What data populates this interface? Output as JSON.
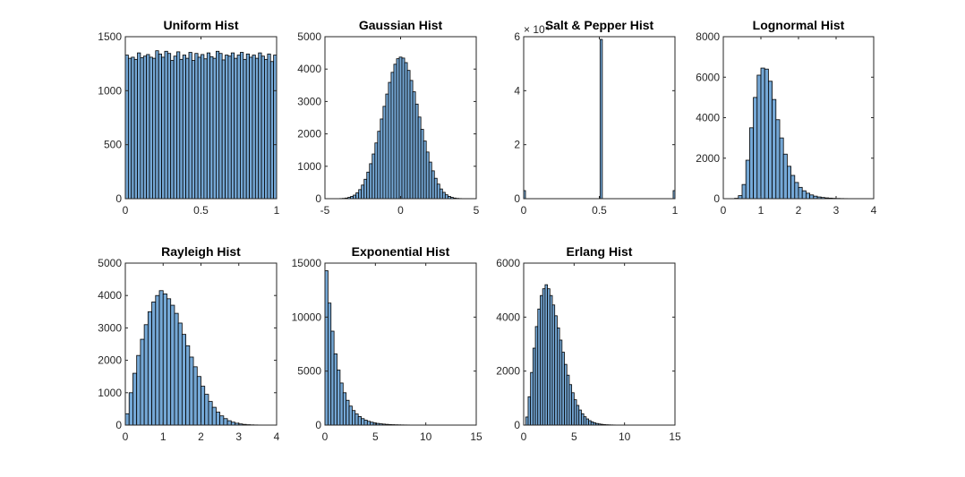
{
  "figure": {
    "background": "#ffffff",
    "bar_color": "#75A8D6",
    "bar_edge": "#000000"
  },
  "chart_data": [
    {
      "type": "bar",
      "title": "Uniform Hist",
      "xlim": [
        0,
        1
      ],
      "ylim": [
        0,
        1500
      ],
      "xticks": [
        "0",
        "0.5",
        "1"
      ],
      "xtick_values": [
        0,
        0.5,
        1
      ],
      "yticks": [
        "0",
        "500",
        "1000",
        "1500"
      ],
      "ytick_values": [
        0,
        500,
        1000,
        1500
      ],
      "bin_range": [
        0,
        1
      ],
      "values": [
        1330,
        1300,
        1310,
        1290,
        1350,
        1305,
        1320,
        1335,
        1310,
        1300,
        1370,
        1340,
        1310,
        1365,
        1345,
        1280,
        1320,
        1360,
        1290,
        1330,
        1300,
        1355,
        1280,
        1345,
        1310,
        1335,
        1295,
        1350,
        1315,
        1300,
        1365,
        1345,
        1285,
        1330,
        1320,
        1350,
        1300,
        1330,
        1355,
        1290,
        1340,
        1310,
        1330,
        1300,
        1350,
        1320,
        1290,
        1340,
        1270,
        1330
      ]
    },
    {
      "type": "bar",
      "title": "Gaussian Hist",
      "xlim": [
        -5,
        5
      ],
      "ylim": [
        0,
        5000
      ],
      "xticks": [
        "-5",
        "0",
        "5"
      ],
      "xtick_values": [
        -5,
        0,
        5
      ],
      "yticks": [
        "0",
        "1000",
        "2000",
        "3000",
        "4000",
        "5000"
      ],
      "ytick_values": [
        0,
        1000,
        2000,
        3000,
        4000,
        5000
      ],
      "bin_range": [
        -4.2,
        4.2
      ],
      "values": [
        2,
        5,
        10,
        20,
        40,
        70,
        110,
        180,
        280,
        420,
        600,
        820,
        1080,
        1380,
        1720,
        2080,
        2460,
        2850,
        3230,
        3590,
        3900,
        4150,
        4320,
        4370,
        4340,
        4200,
        3960,
        3650,
        3300,
        2920,
        2520,
        2140,
        1780,
        1440,
        1130,
        860,
        630,
        450,
        300,
        195,
        120,
        72,
        40,
        20,
        10,
        5,
        2
      ]
    },
    {
      "type": "bar",
      "title": "Salt & Pepper Hist",
      "xlim": [
        0,
        1
      ],
      "ylim": [
        0,
        6
      ],
      "y_exponent_label": "× 10⁴",
      "xticks": [
        "0",
        "0.5",
        "1"
      ],
      "xtick_values": [
        0,
        0.5,
        1
      ],
      "yticks": [
        "0",
        "2",
        "4",
        "6"
      ],
      "ytick_values": [
        0,
        2,
        4,
        6
      ],
      "bars": [
        {
          "x0": 0.0,
          "x1": 0.012,
          "value": 0.3
        },
        {
          "x0": 0.505,
          "x1": 0.52,
          "value": 5.9
        },
        {
          "x0": 0.988,
          "x1": 1.0,
          "value": 0.3
        }
      ]
    },
    {
      "type": "bar",
      "title": "Lognormal Hist",
      "xlim": [
        0,
        4
      ],
      "ylim": [
        0,
        8000
      ],
      "xticks": [
        "0",
        "1",
        "2",
        "3",
        "4"
      ],
      "xtick_values": [
        0,
        1,
        2,
        3,
        4
      ],
      "yticks": [
        "0",
        "2000",
        "4000",
        "6000",
        "8000"
      ],
      "ytick_values": [
        0,
        2000,
        4000,
        6000,
        8000
      ],
      "bin_range": [
        0.3,
        3.6
      ],
      "values": [
        20,
        150,
        700,
        1900,
        3500,
        5000,
        6100,
        6450,
        6400,
        5800,
        4900,
        3900,
        3000,
        2200,
        1600,
        1150,
        800,
        560,
        390,
        270,
        185,
        125,
        85,
        58,
        40,
        28,
        19,
        13,
        9,
        6,
        4,
        3,
        2
      ]
    },
    {
      "type": "bar",
      "title": "Rayleigh Hist",
      "xlim": [
        0,
        4
      ],
      "ylim": [
        0,
        5000
      ],
      "xticks": [
        "0",
        "1",
        "2",
        "3",
        "4"
      ],
      "xtick_values": [
        0,
        1,
        2,
        3,
        4
      ],
      "yticks": [
        "0",
        "1000",
        "2000",
        "3000",
        "4000",
        "5000"
      ],
      "ytick_values": [
        0,
        1000,
        2000,
        3000,
        4000,
        5000
      ],
      "bin_range": [
        0,
        3.8
      ],
      "values": [
        350,
        1000,
        1600,
        2150,
        2650,
        3100,
        3500,
        3800,
        4000,
        4150,
        4050,
        3900,
        3700,
        3450,
        3150,
        2800,
        2450,
        2100,
        1800,
        1500,
        1200,
        950,
        730,
        550,
        400,
        285,
        200,
        135,
        90,
        58,
        36,
        22,
        13,
        8,
        5,
        3,
        2,
        1
      ]
    },
    {
      "type": "bar",
      "title": "Exponential Hist",
      "xlim": [
        0,
        15
      ],
      "ylim": [
        0,
        15000
      ],
      "xticks": [
        "0",
        "5",
        "10",
        "15"
      ],
      "xtick_values": [
        0,
        5,
        10,
        15
      ],
      "yticks": [
        "0",
        "5000",
        "10000",
        "15000"
      ],
      "ytick_values": [
        0,
        5000,
        10000,
        15000
      ],
      "bin_range": [
        0,
        10.2
      ],
      "values": [
        14300,
        11300,
        8700,
        6600,
        5100,
        3900,
        3000,
        2300,
        1760,
        1350,
        1030,
        790,
        600,
        460,
        350,
        270,
        205,
        157,
        120,
        92,
        70,
        54,
        41,
        31,
        24,
        18,
        14,
        11,
        8,
        6,
        5,
        4,
        3,
        2
      ]
    },
    {
      "type": "bar",
      "title": "Erlang Hist",
      "xlim": [
        0,
        15
      ],
      "ylim": [
        0,
        6000
      ],
      "xticks": [
        "0",
        "5",
        "10",
        "15"
      ],
      "xtick_values": [
        0,
        5,
        10,
        15
      ],
      "yticks": [
        "0",
        "2000",
        "4000",
        "6000"
      ],
      "ytick_values": [
        0,
        2000,
        4000,
        6000
      ],
      "bin_range": [
        0.2,
        9.8
      ],
      "values": [
        300,
        1050,
        1950,
        2850,
        3650,
        4300,
        4800,
        5050,
        5200,
        5050,
        4800,
        4450,
        4050,
        3600,
        3150,
        2700,
        2250,
        1850,
        1500,
        1200,
        940,
        730,
        560,
        420,
        310,
        230,
        165,
        120,
        85,
        60,
        42,
        29,
        20,
        14,
        10,
        7,
        5,
        3,
        2,
        1
      ]
    }
  ]
}
